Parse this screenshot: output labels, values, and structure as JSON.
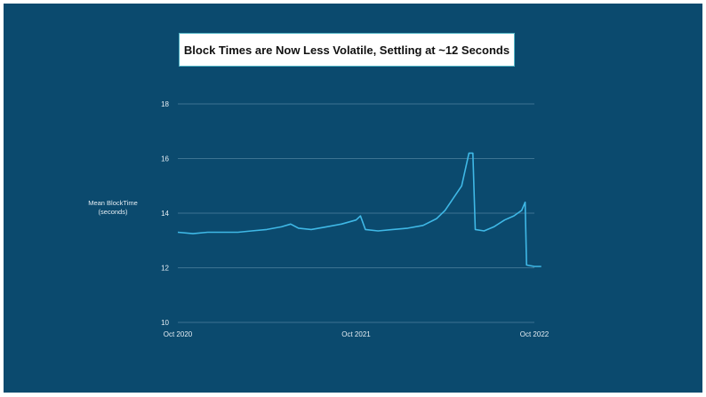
{
  "title": "Block Times are Now Less Volatile, Settling at ~12 Seconds",
  "chart_data": {
    "type": "line",
    "title": "Block Times are Now Less Volatile, Settling at ~12 Seconds",
    "xlabel": "",
    "ylabel": "Mean BlockTime (seconds)",
    "ylabel_lines": [
      "Mean BlockTime",
      "(seconds)"
    ],
    "ylim": [
      10,
      18
    ],
    "yticks": [
      10,
      12,
      14,
      16,
      18
    ],
    "xlim": [
      "2020-10",
      "2022-10"
    ],
    "xticks": [
      {
        "label": "Oct 2020",
        "value": "2020-10"
      },
      {
        "label": "Oct 2021",
        "value": "2021-10"
      },
      {
        "label": "Oct 2022",
        "value": "2022-10"
      }
    ],
    "grid": "horizontal",
    "legend": "none",
    "line_color": "#3fb8e6",
    "series": [
      {
        "values": [
          [
            "2020-10-01",
            13.3
          ],
          [
            "2020-11-01",
            13.25
          ],
          [
            "2020-12-01",
            13.3
          ],
          [
            "2021-01-01",
            13.3
          ],
          [
            "2021-02-01",
            13.3
          ],
          [
            "2021-03-01",
            13.35
          ],
          [
            "2021-04-01",
            13.4
          ],
          [
            "2021-05-01",
            13.5
          ],
          [
            "2021-05-20",
            13.6
          ],
          [
            "2021-06-05",
            13.45
          ],
          [
            "2021-07-01",
            13.4
          ],
          [
            "2021-08-01",
            13.5
          ],
          [
            "2021-09-01",
            13.6
          ],
          [
            "2021-10-01",
            13.75
          ],
          [
            "2021-10-10",
            13.9
          ],
          [
            "2021-10-20",
            13.4
          ],
          [
            "2021-11-15",
            13.35
          ],
          [
            "2021-12-15",
            13.4
          ],
          [
            "2022-01-15",
            13.45
          ],
          [
            "2022-02-15",
            13.55
          ],
          [
            "2022-03-15",
            13.8
          ],
          [
            "2022-04-01",
            14.1
          ],
          [
            "2022-04-20",
            14.6
          ],
          [
            "2022-05-05",
            15.0
          ],
          [
            "2022-05-20",
            16.2
          ],
          [
            "2022-05-28",
            16.2
          ],
          [
            "2022-06-02",
            13.4
          ],
          [
            "2022-06-20",
            13.35
          ],
          [
            "2022-07-10",
            13.5
          ],
          [
            "2022-08-01",
            13.75
          ],
          [
            "2022-08-20",
            13.9
          ],
          [
            "2022-09-05",
            14.1
          ],
          [
            "2022-09-12",
            14.4
          ],
          [
            "2022-09-15",
            12.1
          ],
          [
            "2022-10-01",
            12.05
          ],
          [
            "2022-10-15",
            12.05
          ]
        ]
      }
    ]
  }
}
